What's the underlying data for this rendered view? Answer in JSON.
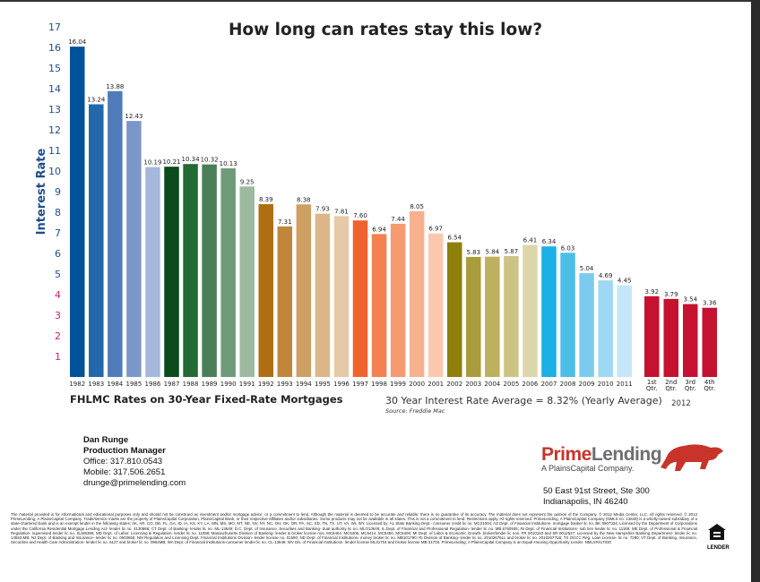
{
  "chart_data": {
    "type": "bar",
    "title": "How long can rates stay this low?",
    "ylabel": "Interest Rate",
    "ylim": [
      0,
      17
    ],
    "yticks": [
      1,
      2,
      3,
      4,
      5,
      6,
      7,
      8,
      9,
      10,
      11,
      12,
      13,
      14,
      15,
      16,
      17
    ],
    "grid": false,
    "categories": [
      "1982",
      "1983",
      "1984",
      "1985",
      "1986",
      "1987",
      "1988",
      "1989",
      "1990",
      "1991",
      "1992",
      "1993",
      "1994",
      "1995",
      "1996",
      "1997",
      "1998",
      "1999",
      "2000",
      "2001",
      "2002",
      "2003",
      "2004",
      "2005",
      "2006",
      "2007",
      "2008",
      "2009",
      "2010",
      "2011"
    ],
    "values": [
      16.04,
      13.24,
      13.88,
      12.43,
      10.19,
      10.21,
      10.34,
      10.32,
      10.13,
      9.25,
      8.39,
      7.31,
      8.38,
      7.93,
      7.81,
      7.6,
      6.94,
      7.44,
      8.05,
      6.97,
      6.54,
      5.83,
      5.84,
      5.87,
      6.41,
      6.34,
      6.03,
      5.04,
      4.69,
      4.45
    ],
    "colors": [
      "#00529b",
      "#2268ad",
      "#4f7cba",
      "#7b97c9",
      "#a5b8dc",
      "#0a4a1b",
      "#236a35",
      "#4a7f57",
      "#6f9b79",
      "#9db9a0",
      "#b06e12",
      "#c0863b",
      "#cf9e62",
      "#dcb688",
      "#e6caa8",
      "#f0622c",
      "#f4814f",
      "#f69a72",
      "#f8b08f",
      "#fbc8ae",
      "#8f7f0b",
      "#aa9b3b",
      "#bdb05e",
      "#cdc384",
      "#ddd6ab",
      "#1bb0e6",
      "#4dbeea",
      "#7ccbef",
      "#9fd8f3",
      "#c4e6f8"
    ],
    "quarters": {
      "year": "2012",
      "categories": [
        [
          "1st",
          "Qtr."
        ],
        [
          "2nd",
          "Qtr."
        ],
        [
          "3rd",
          "Qtr."
        ],
        [
          "4th",
          "Qtr."
        ]
      ],
      "values": [
        3.92,
        3.79,
        3.54,
        3.36
      ],
      "color": "#c41230"
    },
    "ytick_color_high": "#1f4e8c",
    "ytick_color_low": "#c0207e",
    "subtitle": "FHLMC Rates on 30-Year Fixed-Rate Mortgages",
    "average_note": "30 Year Interest Rate Average = 8.32% (Yearly Average)",
    "source": "Source: Freddie Mac"
  },
  "contact": {
    "name": "Dan Runge",
    "title": "Production Manager",
    "office": "Office: 317.810.0543",
    "mobile": "Mobile: 317.506.2651",
    "email": "drunge@primelending.com"
  },
  "logo": {
    "brand_prime": "Prime",
    "brand_lending": "Lending",
    "tagline": "A PlainsCapital Company.",
    "accent": "#c8342a"
  },
  "address": {
    "line1": "50 East 91st Street, Ste 300",
    "line2": "Indianapolis, IN 46240"
  },
  "disclaimer": "The material provided is for informational and educational purposes only and should not be construed as investment and/or mortgage advice, or a commitment to lend. Although the material is deemed to be accurate and reliable, there is no guarantee of its accuracy. The material does not represent the opinion of the Company. © 2012 Media Center, LLC. All rights reserved. © 2013 PrimeLending, A PlainsCapital Company. Trade/service marks are the property of PlainsCapital Corporation, PlainsCapital Bank, or their respective affiliates and/or subsidiaries. Some products may not be available in all states. This is not a commitment to lend. Restrictions apply. All rights reserved. PrimeLending, A PlainsCapital Company (NMLS no: 13649) is a wholly-owned subsidiary of a state-chartered bank and is an exempt lender in the following states: AK, AR, CO, DE, FL, GA, ID, IA, KS, KY, LA, MN, MS, MO, MT, NE, NV, NY, NC, OH, OK, OR, PA, SC, SD, TN, TX, UT, VA, WI, WY. Licensed by: AL State Banking Dept.- consumer credit lic no. MC21004; AZ Dept. of Financial Institutions- mortgage banker lic no. BK 0907334; Licensed by the Department of Corporations under the California Residential Mortgage Lending Act- lender lic no. 4130966; CT Dept. of Banking- lender lic no. ML-13649; D.C. Dept. of Insurance, Securities and Banking- dual authority lic no. MLO13649; IL Dept. of Financial and Professional Regulation- lender lic no. MB.6760935; IN Dept. of Financial Institutions- sub lien lender lic no. 11169; ME Dept. of Professional & Financial Regulation- supervised lender lic no. SLM6395; MD Dept. of Labor, Licensing & Regulation- lender lic no. 11058; Massachusetts Division of Banking- lender & broker license nos. MC5404, MC5406, MC5414, MC5450, MC5405; MI Dept. of Labor & Economic Growth- broker/lender lic nos. FR 0010163 and SR 0012527; Licensed by the New Hampshire Banking Department- lender lic no. 14553-MB; NJ Dept. of Banking and Insurance- lender lic no. 0603656; NM Regulation and Licensing Dept. Financial Institutions Division- lender license no. 01590; ND Dept. of Financial Institutions- money broker lic no. MB101790; RI Division of Banking- lender lic no. 20102676LL and broker lic no. 20102677LB; TX OCCC Reg. Loan License- lic no. 7290; VT Dept. of Banking, Insurance, Securities and Health Care Administration- lender lic no. 6127 and broker lic no. 0964MB; WA Dept. of Financial Institutions-consumer lender lic no. CL-13649; WV Div. of Financial Institutions- lender license ML31704 and broker license MB-31703. PrimeLending, A PlainsCapital Company is an Equal Housing Opportunity Lender. NMLS#417030",
  "equal_housing": {
    "label": "EQUAL HOUSING LENDER",
    "word": "LENDER"
  }
}
